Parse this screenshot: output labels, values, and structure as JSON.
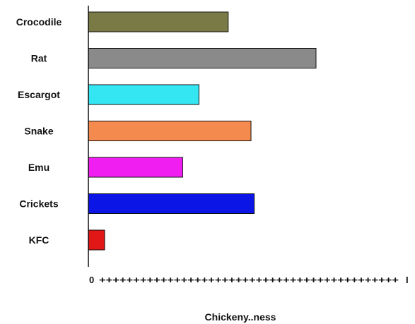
{
  "chart_data": {
    "type": "bar",
    "orientation": "horizontal",
    "categories": [
      "Crocodile",
      "Rat",
      "Escargot",
      "Snake",
      "Emu",
      "Crickets",
      "KFC"
    ],
    "values": [
      43,
      70,
      34,
      50,
      29,
      51,
      5
    ],
    "colors": [
      "#7a7a47",
      "#8a8a8a",
      "#33e6f2",
      "#f58a4f",
      "#f01ef0",
      "#0b16e6",
      "#e11717"
    ],
    "xlim": [
      0,
      100
    ],
    "xaxis_start_label": "0",
    "xaxis_tick_text": "++++++++++++++++++++++++++++++++++++++++++++",
    "xaxis_end_label": "I",
    "xlabel": "Chickeny..ness",
    "ylabel": "",
    "title": "",
    "grid": false,
    "legend": "none"
  }
}
